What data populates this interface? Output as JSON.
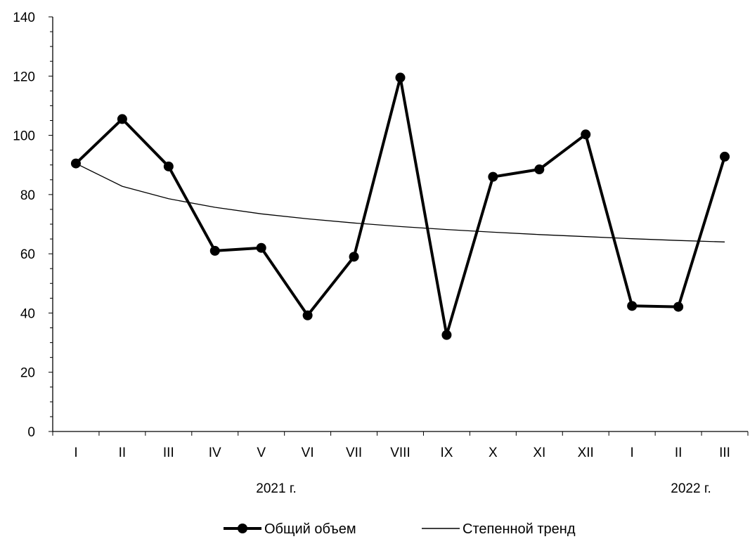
{
  "chart_data": {
    "type": "line",
    "categories": [
      "I",
      "II",
      "III",
      "IV",
      "V",
      "VI",
      "VII",
      "VIII",
      "IX",
      "X",
      "XI",
      "XII",
      "I",
      "II",
      "III"
    ],
    "year_labels": [
      "2021 г.",
      "2022 г."
    ],
    "ylim": [
      0,
      140
    ],
    "yticks": [
      0,
      20,
      40,
      60,
      80,
      100,
      120,
      140
    ],
    "series": [
      {
        "name": "Общий объем",
        "color": "#000000",
        "marker": "circle",
        "values": [
          90.5,
          105.5,
          89.5,
          61.0,
          62.0,
          39.2,
          59.0,
          119.5,
          32.6,
          86.0,
          88.5,
          100.3,
          42.4,
          42.1,
          92.8
        ]
      },
      {
        "name": "Степенной тренд",
        "color": "#000000",
        "marker": "none",
        "trend": "power",
        "values": [
          90.5,
          82.8,
          78.6,
          75.7,
          73.5,
          71.8,
          70.4,
          69.2,
          68.2,
          67.3,
          66.5,
          65.8,
          65.1,
          64.5,
          64.0
        ]
      }
    ],
    "grid": false,
    "legend": "bottom"
  }
}
